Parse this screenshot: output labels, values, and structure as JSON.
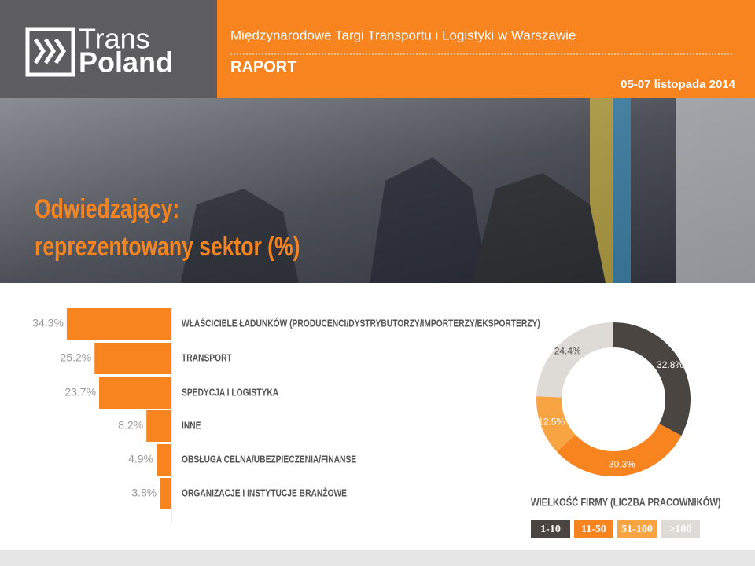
{
  "header": {
    "logo": [
      "Trans",
      "Poland"
    ],
    "subtitle": "Międzynarodowe Targi Transportu i Logistyki w Warszawie",
    "report": "RAPORT",
    "date": "05-07 listopada 2014"
  },
  "chart_data": [
    {
      "type": "hbar",
      "title": [
        "Odwiedzający:",
        "reprezentowany sektor (%)"
      ],
      "categories": [
        "WŁAŚCICIELE ŁADUNKÓW (PRODUCENCI/DYSTRYBUTORZY/IMPORTERZY/EKSPORTERZY)",
        "TRANSPORT",
        "SPEDYCJA I LOGISTYKA",
        "INNE",
        "OBSŁUGA CELNA/UBEZPIECZENIA/FINANSE",
        "ORGANIZACJE I INSTYTUCJE BRANŻOWE"
      ],
      "values": [
        34.3,
        25.2,
        23.7,
        8.2,
        4.9,
        3.8
      ],
      "value_labels": [
        "34.3%",
        "25.2%",
        "23.7%",
        "8.2%",
        "4.9%",
        "3.8%"
      ],
      "color": "#f7841f"
    },
    {
      "type": "donut",
      "title": "WIELKOŚĆ FIRMY (LICZBA PRACOWNIKÓW)",
      "categories": [
        "1-10",
        "11-50",
        "51-100",
        ">100"
      ],
      "values": [
        32.8,
        30.3,
        12.5,
        24.4
      ],
      "value_labels": [
        "32.8%",
        "30.3%",
        "12.5%",
        "24.4%"
      ],
      "colors": [
        "#4a4541",
        "#f7841f",
        "#f9a443",
        "#dedad6"
      ]
    }
  ]
}
